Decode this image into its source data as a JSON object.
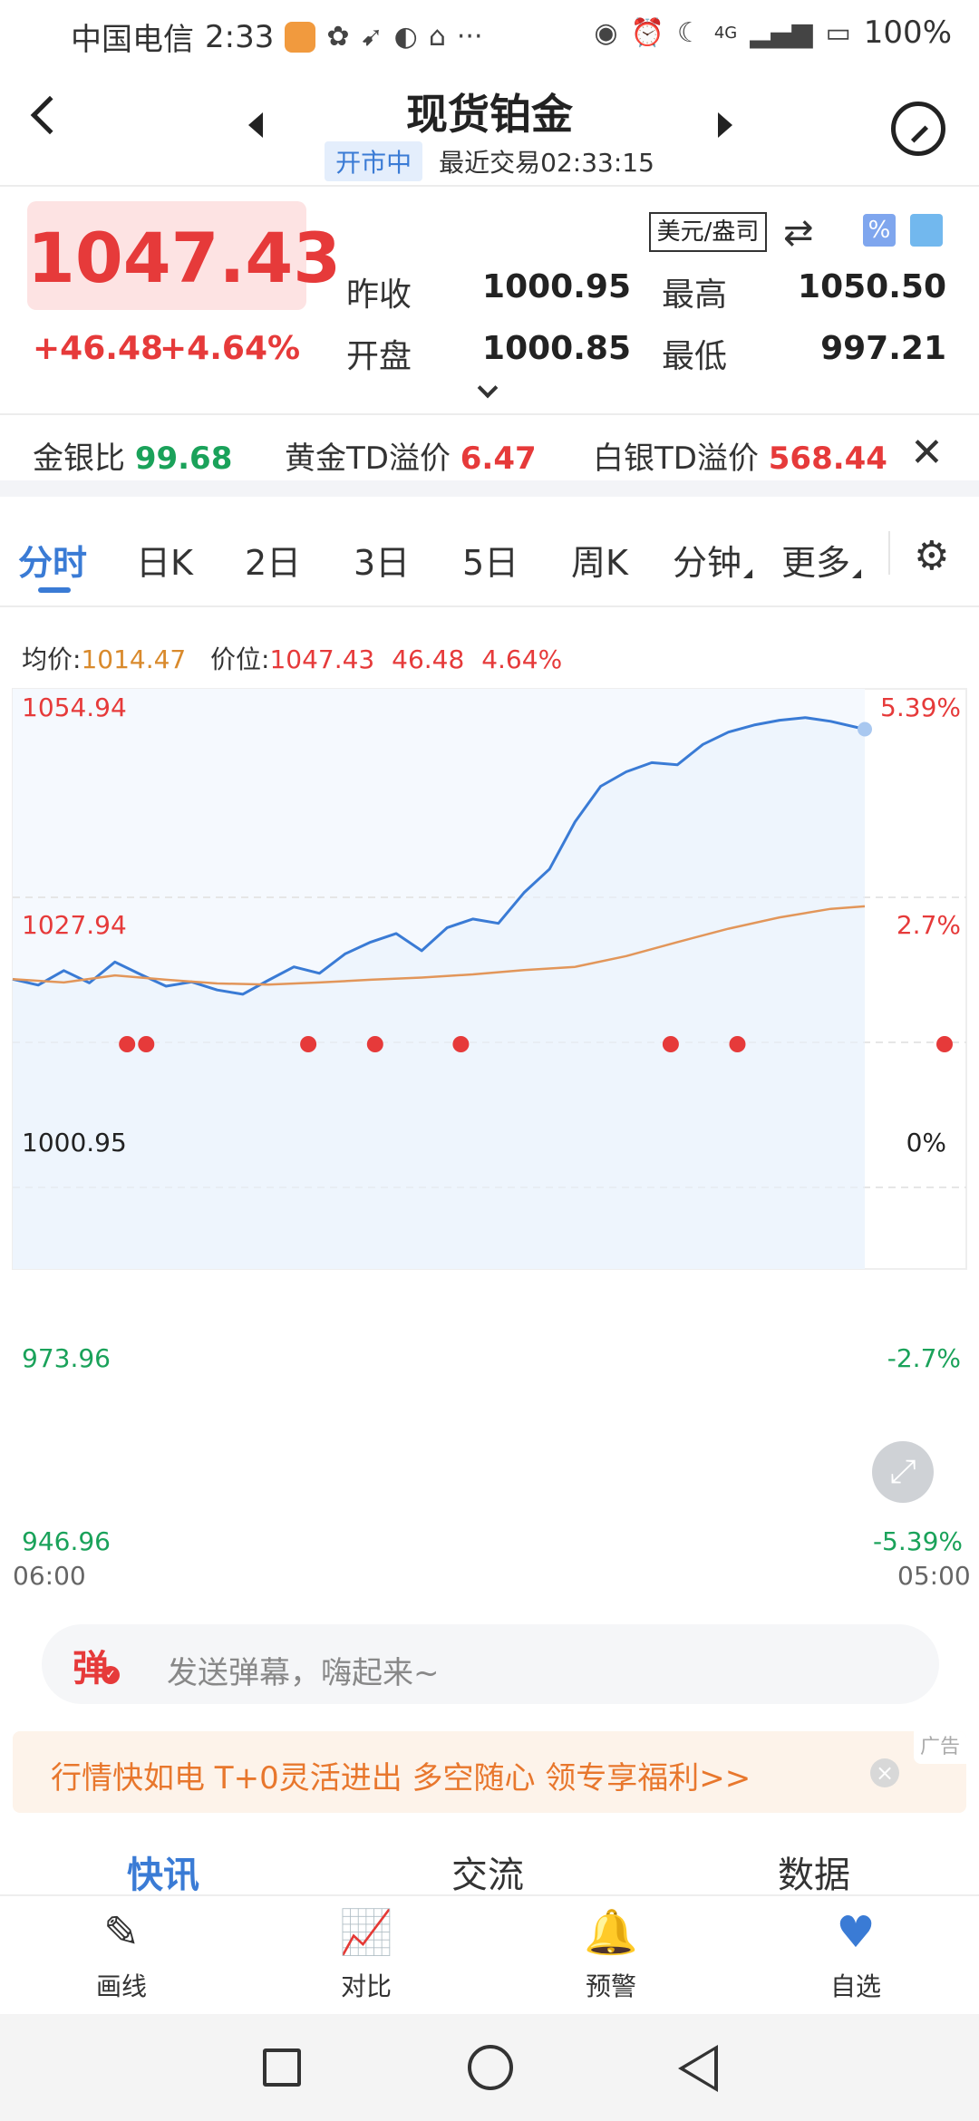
{
  "status_bar": {
    "carrier": "中国电信",
    "time": "2:33",
    "more": "···",
    "network": "4G",
    "battery": "100%"
  },
  "header": {
    "title": "现货铂金",
    "market_status": "开市中",
    "last_trade": "最近交易02:33:15"
  },
  "quote": {
    "price": "1047.43",
    "change": "+46.48",
    "change_pct": "+4.64%",
    "unit": "美元/盎司",
    "prev_close_label": "昨收",
    "prev_close": "1000.95",
    "high_label": "最高",
    "high": "1050.50",
    "open_label": "开盘",
    "open": "1000.85",
    "low_label": "最低",
    "low": "997.21"
  },
  "ratios": {
    "gold_silver_label": "金银比",
    "gold_silver": "99.68",
    "gold_td_label": "黄金TD溢价",
    "gold_td": "6.47",
    "silver_td_label": "白银TD溢价",
    "silver_td": "568.44"
  },
  "tabs": [
    "分时",
    "日K",
    "2日",
    "3日",
    "5日",
    "周K",
    "分钟",
    "更多"
  ],
  "chart_info": {
    "avg_label": "均价:",
    "avg": "1014.47",
    "price_label": "价位:",
    "price": "1047.43",
    "change": "46.48",
    "change_pct": "4.64%"
  },
  "chart_data": {
    "type": "line",
    "x_start": "06:00",
    "x_end": "05:00",
    "ylim": [
      946.96,
      1054.94
    ],
    "y_ticks": [
      "1054.94",
      "1027.94",
      "1000.95",
      "973.96",
      "946.96"
    ],
    "y_pct_ticks": [
      "5.39%",
      "2.7%",
      "0%",
      "-2.7%",
      "-5.39%"
    ],
    "series": [
      {
        "name": "价位",
        "color": "#3a7bd5",
        "x": [
          0,
          0.03,
          0.06,
          0.09,
          0.12,
          0.15,
          0.18,
          0.21,
          0.24,
          0.27,
          0.3,
          0.33,
          0.36,
          0.39,
          0.42,
          0.45,
          0.48,
          0.51,
          0.54,
          0.57,
          0.6,
          0.63,
          0.66,
          0.69,
          0.72,
          0.75,
          0.78,
          0.81,
          0.84,
          0.87,
          0.9,
          0.93,
          0.96,
          1.0
        ],
        "values": [
          1000.9,
          999.8,
          1002.5,
          1000.2,
          1004.1,
          1001.8,
          999.6,
          1000.4,
          998.9,
          998.1,
          1000.7,
          1003.2,
          1002.0,
          1005.6,
          1007.8,
          1009.4,
          1006.2,
          1010.5,
          1012.1,
          1011.3,
          1017.0,
          1021.4,
          1030.2,
          1036.8,
          1039.5,
          1041.2,
          1040.8,
          1044.6,
          1046.9,
          1048.2,
          1049.1,
          1049.6,
          1048.9,
          1047.43
        ]
      },
      {
        "name": "均价",
        "color": "#e2965a",
        "x": [
          0,
          0.06,
          0.12,
          0.18,
          0.24,
          0.3,
          0.36,
          0.42,
          0.48,
          0.54,
          0.6,
          0.66,
          0.72,
          0.78,
          0.84,
          0.9,
          0.96,
          1.0
        ],
        "values": [
          1000.9,
          1000.3,
          1001.6,
          1000.8,
          1000.1,
          999.9,
          1000.3,
          1000.8,
          1001.2,
          1001.8,
          1002.6,
          1003.2,
          1005.2,
          1007.8,
          1010.3,
          1012.4,
          1014.0,
          1014.47
        ]
      }
    ],
    "event_markers": [
      0.12,
      0.14,
      0.31,
      0.38,
      0.47,
      0.69,
      0.76,
      1.0
    ]
  },
  "danmaku": {
    "icon": "弹",
    "placeholder": "发送弹幕，嗨起来~"
  },
  "ad": {
    "text": "行情快如电 T+0灵活进出 多空随心 领专享福利>>",
    "tag": "广告",
    "close": "×"
  },
  "sections": [
    "快讯",
    "交流",
    "数据"
  ],
  "toolbar": {
    "draw": "画线",
    "compare": "对比",
    "alert": "预警",
    "watch": "自选"
  },
  "colors": {
    "up": "#e63a3a",
    "down": "#1aa25a",
    "accent": "#3a7bd5",
    "avg_line": "#e2965a"
  }
}
